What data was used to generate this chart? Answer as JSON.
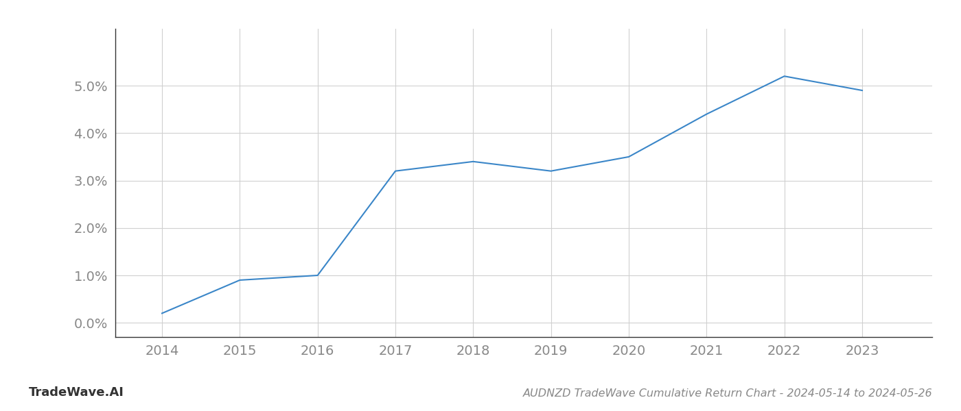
{
  "x_years": [
    2014,
    2015,
    2016,
    2017,
    2018,
    2019,
    2020,
    2021,
    2022,
    2023
  ],
  "y_values": [
    0.002,
    0.009,
    0.01,
    0.032,
    0.034,
    0.032,
    0.035,
    0.044,
    0.052,
    0.049
  ],
  "line_color": "#3a86c8",
  "background_color": "#ffffff",
  "grid_color": "#d0d0d0",
  "title": "AUDNZD TradeWave Cumulative Return Chart - 2024-05-14 to 2024-05-26",
  "watermark": "TradeWave.AI",
  "ylim": [
    -0.003,
    0.062
  ],
  "ytick_values": [
    0.0,
    0.01,
    0.02,
    0.03,
    0.04,
    0.05
  ],
  "xlim": [
    2013.4,
    2023.9
  ],
  "xtick_values": [
    2014,
    2015,
    2016,
    2017,
    2018,
    2019,
    2020,
    2021,
    2022,
    2023
  ],
  "line_width": 1.5,
  "title_fontsize": 11.5,
  "tick_fontsize": 14,
  "watermark_fontsize": 13,
  "title_color": "#888888",
  "tick_color": "#888888",
  "watermark_color": "#333333"
}
